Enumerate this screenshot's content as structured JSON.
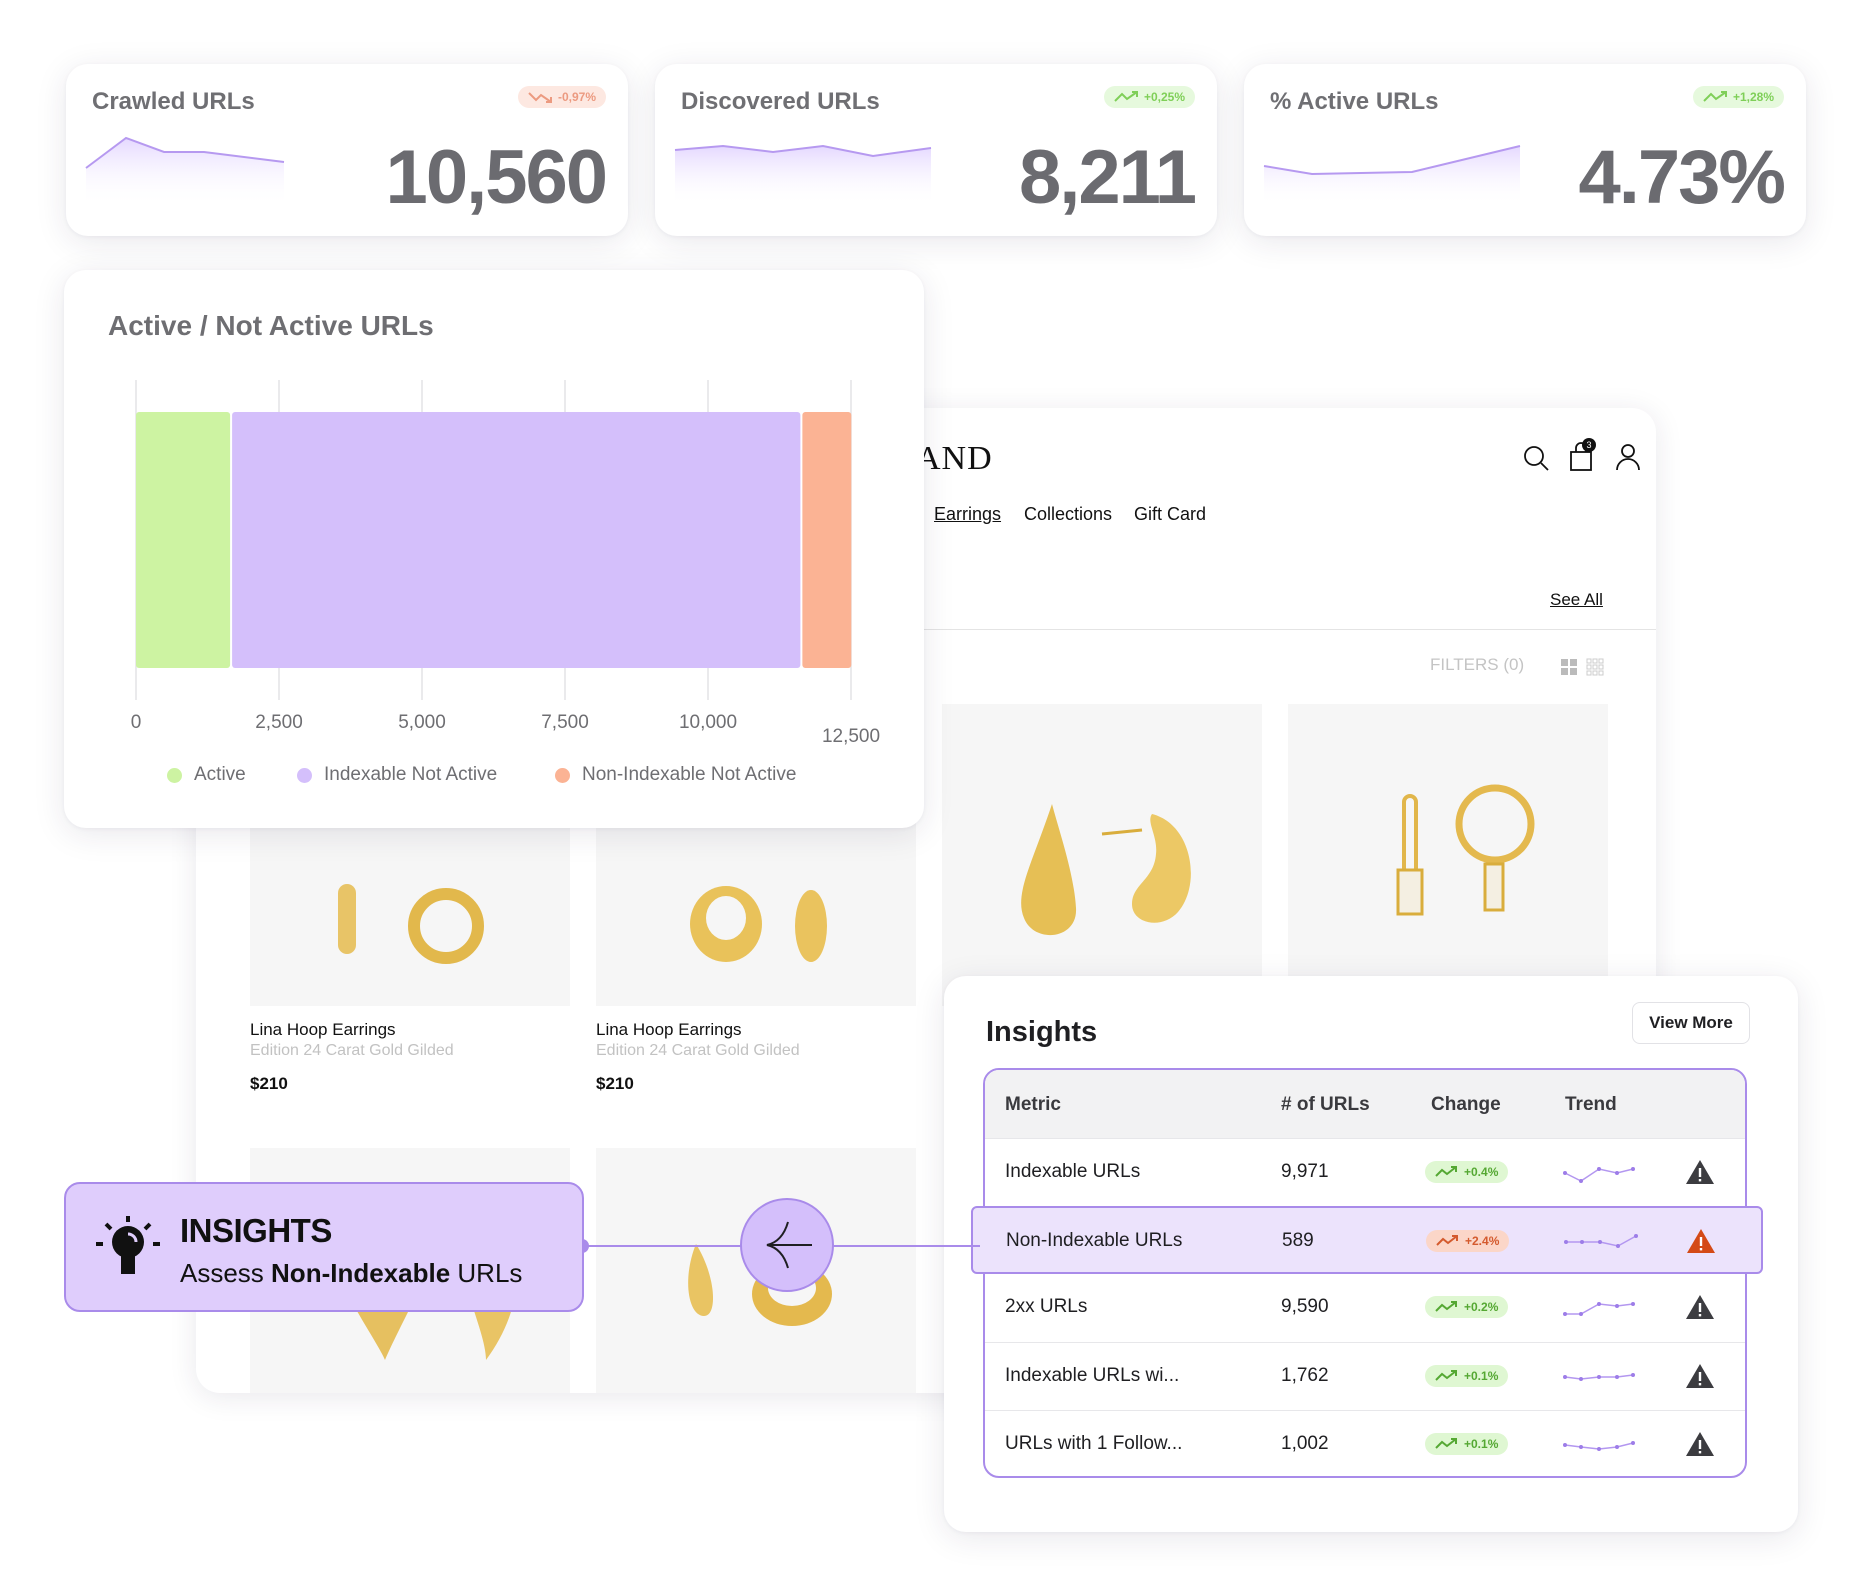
{
  "kpis": [
    {
      "title": "Crawled URLs",
      "value": "10,560",
      "change": "-0,97%",
      "direction": "down"
    },
    {
      "title": "Discovered URLs",
      "value": "8,211",
      "change": "+0,25%",
      "direction": "up"
    },
    {
      "title": "% Active URLs",
      "value": "4.73%",
      "change": "+1,28%",
      "direction": "up"
    }
  ],
  "active_chart": {
    "title": "Active / Not Active URLs",
    "ticks": [
      "0",
      "2,500",
      "5,000",
      "7,500",
      "10,000",
      "12,500"
    ],
    "legend": [
      {
        "label": "Active",
        "color": "#cdf3a2"
      },
      {
        "label": "Indexable Not Active",
        "color": "#d4bffb"
      },
      {
        "label": "Non-Indexable Not Active",
        "color": "#fbb394"
      }
    ]
  },
  "chart_data": {
    "type": "bar",
    "orientation": "horizontal-stacked",
    "title": "Active / Not Active URLs",
    "xlim": [
      0,
      12500
    ],
    "series": [
      {
        "name": "Active",
        "values": [
          1680
        ]
      },
      {
        "name": "Indexable Not Active",
        "values": [
          9970
        ]
      },
      {
        "name": "Non-Indexable Not Active",
        "values": [
          890
        ]
      }
    ],
    "grid": true,
    "legend": "bottom"
  },
  "store": {
    "brand": "AND",
    "nav": [
      "Earrings",
      "Collections",
      "Gift Card"
    ],
    "cart_count": "3",
    "see_all": "See All",
    "filters": "FILTERS (0)",
    "products": [
      {
        "name": "Lina Hoop Earrings",
        "sub": "Edition 24 Carat Gold Gilded",
        "price": "$210"
      },
      {
        "name": "Lina Hoop Earrings",
        "sub": "Edition 24 Carat Gold Gilded",
        "price": "$210"
      }
    ]
  },
  "callout": {
    "heading": "INSIGHTS",
    "text_pre": "Assess ",
    "text_bold": "Non-Indexable",
    "text_post": " URLs"
  },
  "insights": {
    "title": "Insights",
    "view_more": "View More",
    "columns": [
      "Metric",
      "# of URLs",
      "Change",
      "Trend"
    ],
    "rows": [
      {
        "metric": "Indexable URLs",
        "count": "9,971",
        "change": "+0.4%",
        "direction": "up"
      },
      {
        "metric": "Non-Indexable URLs",
        "count": "589",
        "change": "+2.4%",
        "direction": "down"
      },
      {
        "metric": "2xx URLs",
        "count": "9,590",
        "change": "+0.2%",
        "direction": "up"
      },
      {
        "metric": "Indexable URLs wi...",
        "count": "1,762",
        "change": "+0.1%",
        "direction": "up"
      },
      {
        "metric": "URLs with 1 Follow...",
        "count": "1,002",
        "change": "+0.1%",
        "direction": "up"
      }
    ]
  },
  "colors": {
    "accent": "#a98bea",
    "highlight": "#ece3fc",
    "warning": "#d44a17",
    "up": "#55a833",
    "down": "#d45a2d"
  }
}
